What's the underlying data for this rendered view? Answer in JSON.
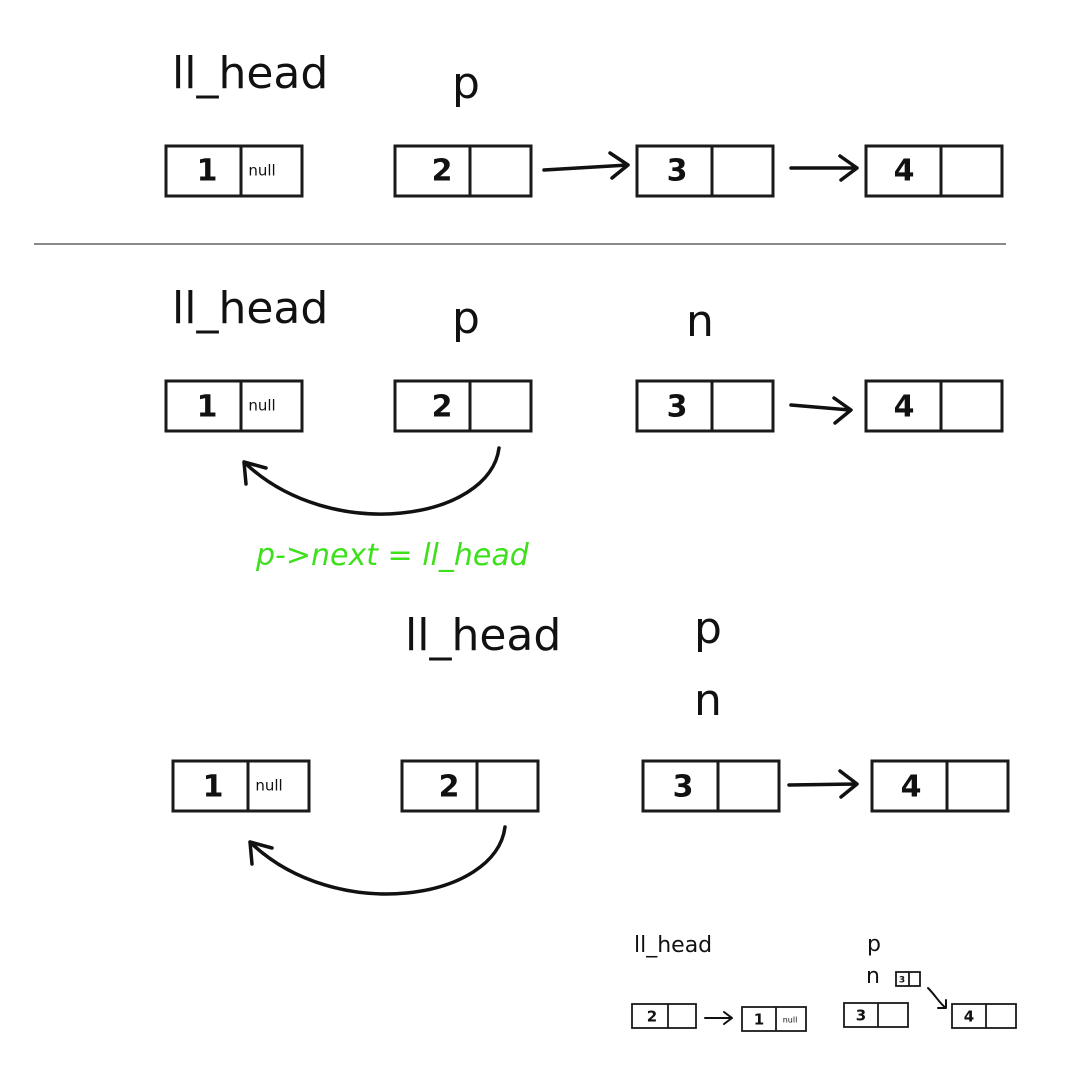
{
  "diagram": {
    "labels": {
      "head": "ll_head",
      "p": "p",
      "n": "n"
    },
    "null_text": "null",
    "annotation": "p->next = ll_head",
    "node_values": [
      "1",
      "2",
      "3",
      "4"
    ],
    "colors": {
      "ink": "#111111",
      "divider": "#8a8a8a",
      "annotation": "#3ee01c"
    }
  }
}
